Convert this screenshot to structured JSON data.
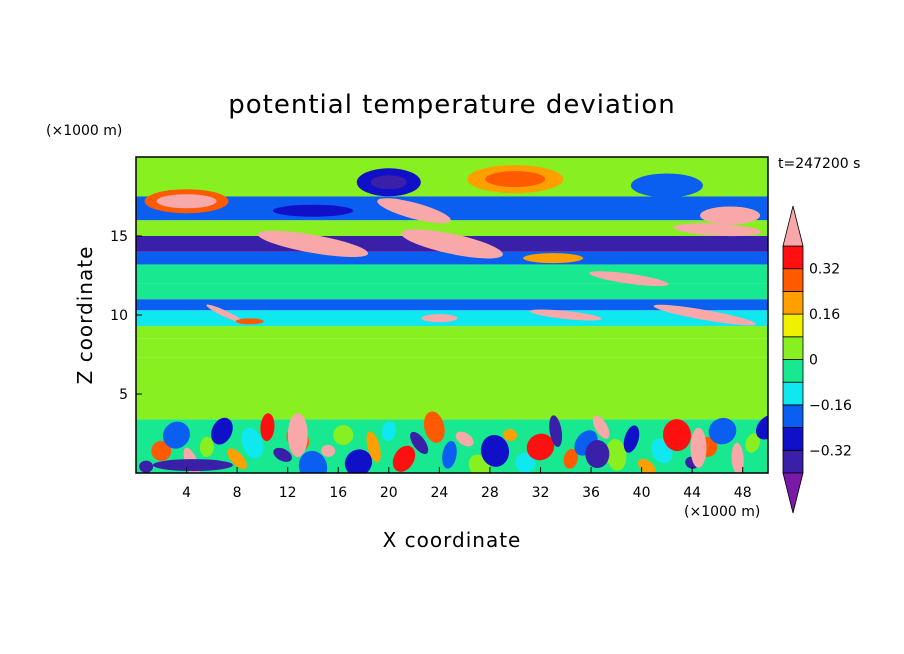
{
  "chart_data": {
    "type": "heatmap",
    "title": "potential temperature deviation",
    "xlabel": "X coordinate",
    "ylabel": "Z coordinate",
    "x_unit": "(×1000 m)",
    "y_unit": "(×1000 m)",
    "time_label": "t=247200 s",
    "xlim": [
      0,
      50
    ],
    "ylim": [
      0,
      20
    ],
    "x_ticks": [
      4,
      8,
      12,
      16,
      20,
      24,
      28,
      32,
      36,
      40,
      44,
      48
    ],
    "y_ticks": [
      5,
      10,
      15
    ],
    "colorbar": {
      "levels": [
        -0.4,
        -0.32,
        -0.24,
        -0.16,
        -0.08,
        0,
        0.08,
        0.16,
        0.24,
        0.32,
        0.4
      ],
      "colors": [
        "#7a18a8",
        "#3a1fa8",
        "#1010c8",
        "#0a5ef0",
        "#10e8f0",
        "#18e890",
        "#88f020",
        "#f0f000",
        "#ffa000",
        "#ff5a00",
        "#ff1010",
        "#f8a8a8"
      ],
      "tick_labels": [
        "0.32",
        "0.16",
        "0",
        "−0.16",
        "−0.32"
      ]
    },
    "bands": [
      {
        "z": [
          0,
          3.4
        ],
        "description": "turbulent boundary layer"
      },
      {
        "z": [
          3.4,
          7.3
        ],
        "level": 0.04
      },
      {
        "z": [
          7.3,
          8.5
        ],
        "level": 0.0
      },
      {
        "z": [
          8.5,
          9.3
        ],
        "level": 0.04
      },
      {
        "z": [
          9.3,
          10.3
        ],
        "level": -0.12
      },
      {
        "z": [
          10.3,
          11.0
        ],
        "level": -0.24
      },
      {
        "z": [
          11.0,
          12.0
        ],
        "level": -0.06
      },
      {
        "z": [
          12.0,
          13.2
        ],
        "level": -0.02
      },
      {
        "z": [
          13.2,
          14.0
        ],
        "level": -0.2
      },
      {
        "z": [
          14.0,
          15.0
        ],
        "level": -0.36
      },
      {
        "z": [
          15.0,
          16.0
        ],
        "level": 0.04
      },
      {
        "z": [
          16.0,
          17.5
        ],
        "level": -0.2
      },
      {
        "z": [
          17.5,
          20.0
        ],
        "level": 0.02
      }
    ]
  }
}
